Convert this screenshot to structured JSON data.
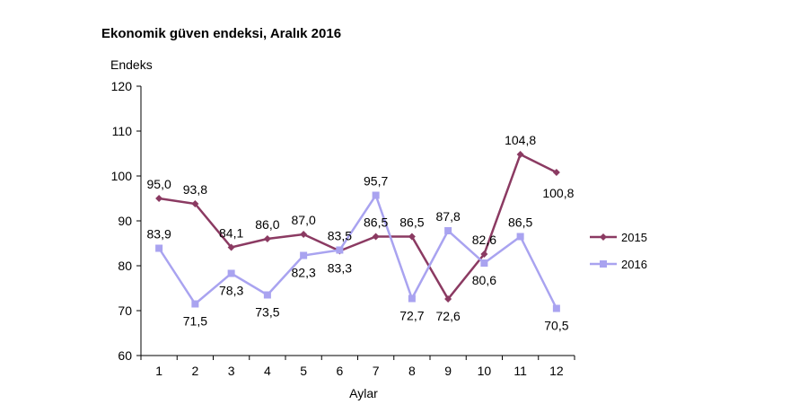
{
  "chart_data": {
    "type": "line",
    "title": "Ekonomik güven endeksi, Aralık 2016",
    "ylabel": "Endeks",
    "xlabel": "Aylar",
    "x": [
      1,
      2,
      3,
      4,
      5,
      6,
      7,
      8,
      9,
      10,
      11,
      12
    ],
    "ylim": [
      60,
      120
    ],
    "yticks": [
      60,
      70,
      80,
      90,
      100,
      110,
      120
    ],
    "grid": false,
    "legend": "right",
    "series": [
      {
        "name": "2015",
        "color": "#8B3A62",
        "marker": "diamond",
        "values": [
          95.0,
          93.8,
          84.1,
          86.0,
          87.0,
          83.3,
          86.5,
          86.5,
          72.6,
          82.6,
          104.8,
          100.8
        ],
        "labels": [
          "95,0",
          "93,8",
          "84,1",
          "86,0",
          "87,0",
          "83,3",
          "86,5",
          "86,5",
          "72,6",
          "82,6",
          "104,8",
          "100,8"
        ]
      },
      {
        "name": "2016",
        "color": "#A9A3F0",
        "marker": "square",
        "values": [
          83.9,
          71.5,
          78.3,
          73.5,
          82.3,
          83.5,
          95.7,
          72.7,
          87.8,
          80.6,
          86.5,
          70.5
        ],
        "labels": [
          "83,9",
          "71,5",
          "78,3",
          "73,5",
          "82,3",
          "83,5",
          "95,7",
          "72,7",
          "87,8",
          "80,6",
          "86,5",
          "70,5"
        ]
      }
    ]
  }
}
